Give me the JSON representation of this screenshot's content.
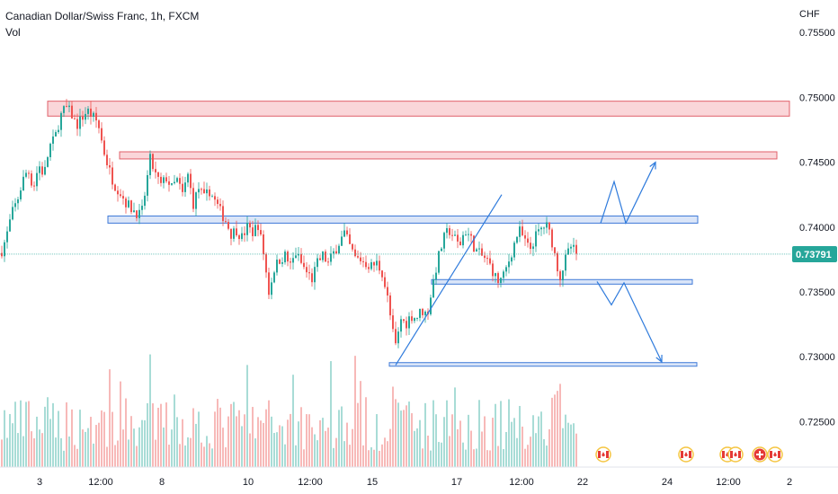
{
  "header": {
    "title": "Canadian Dollar/Swiss Franc, 1h, FXCM",
    "volume_label": "Vol",
    "currency": "CHF"
  },
  "colors": {
    "up": "#26a69a",
    "down": "#ef5350",
    "vol_up": "#a8dcd6",
    "vol_down": "#f7b9b8",
    "resistance_fill": "#f8c8cc",
    "resistance_stroke": "#e0606a",
    "support_fill": "#cddcf6",
    "support_stroke": "#3f7ad8",
    "arrow": "#2f7bdc",
    "price_line": "#26a69a",
    "event_flag": "#e53935",
    "event_ring": "#f5c542"
  },
  "chart_data": {
    "type": "candlestick",
    "title": "Canadian Dollar/Swiss Franc, 1h, FXCM",
    "ylabel": "CHF",
    "ylim": [
      0.7215,
      0.7575
    ],
    "y_ticks": [
      "0.75500",
      "0.75000",
      "0.74500",
      "0.74000",
      "0.73500",
      "0.73000",
      "0.72500"
    ],
    "x_ticks": [
      "3",
      "12:00",
      "8",
      "10",
      "12:00",
      "15",
      "17",
      "12:00",
      "22",
      "24",
      "12:00",
      "2"
    ],
    "last_price": "0.73791",
    "price_path": [
      {
        "t": 0,
        "v": 0.738
      },
      {
        "t": 6,
        "v": 0.7392
      },
      {
        "t": 12,
        "v": 0.741
      },
      {
        "t": 18,
        "v": 0.742
      },
      {
        "t": 24,
        "v": 0.7435
      },
      {
        "t": 30,
        "v": 0.7445
      },
      {
        "t": 36,
        "v": 0.743
      },
      {
        "t": 42,
        "v": 0.7448
      },
      {
        "t": 48,
        "v": 0.744
      },
      {
        "t": 54,
        "v": 0.7462
      },
      {
        "t": 60,
        "v": 0.7468
      },
      {
        "t": 66,
        "v": 0.7485
      },
      {
        "t": 72,
        "v": 0.7492
      },
      {
        "t": 78,
        "v": 0.7488
      },
      {
        "t": 84,
        "v": 0.7478
      },
      {
        "t": 90,
        "v": 0.7484
      },
      {
        "t": 96,
        "v": 0.749
      },
      {
        "t": 102,
        "v": 0.7485
      },
      {
        "t": 108,
        "v": 0.748
      },
      {
        "t": 114,
        "v": 0.746
      },
      {
        "t": 120,
        "v": 0.7445
      },
      {
        "t": 126,
        "v": 0.7433
      },
      {
        "t": 132,
        "v": 0.7428
      },
      {
        "t": 138,
        "v": 0.742
      },
      {
        "t": 144,
        "v": 0.7415
      },
      {
        "t": 150,
        "v": 0.7412
      },
      {
        "t": 156,
        "v": 0.7408
      },
      {
        "t": 160,
        "v": 0.7425
      },
      {
        "t": 166,
        "v": 0.7452
      },
      {
        "t": 172,
        "v": 0.744
      },
      {
        "t": 178,
        "v": 0.7432
      },
      {
        "t": 184,
        "v": 0.7438
      },
      {
        "t": 190,
        "v": 0.743
      },
      {
        "t": 196,
        "v": 0.7436
      },
      {
        "t": 202,
        "v": 0.7425
      },
      {
        "t": 208,
        "v": 0.744
      },
      {
        "t": 214,
        "v": 0.7418
      },
      {
        "t": 220,
        "v": 0.743
      },
      {
        "t": 226,
        "v": 0.7422
      },
      {
        "t": 232,
        "v": 0.7428
      },
      {
        "t": 238,
        "v": 0.742
      },
      {
        "t": 244,
        "v": 0.7412
      },
      {
        "t": 250,
        "v": 0.7405
      },
      {
        "t": 256,
        "v": 0.7395
      },
      {
        "t": 262,
        "v": 0.7398
      },
      {
        "t": 268,
        "v": 0.7392
      },
      {
        "t": 274,
        "v": 0.74
      },
      {
        "t": 280,
        "v": 0.7396
      },
      {
        "t": 286,
        "v": 0.7402
      },
      {
        "t": 292,
        "v": 0.738
      },
      {
        "t": 298,
        "v": 0.735
      },
      {
        "t": 304,
        "v": 0.7368
      },
      {
        "t": 310,
        "v": 0.7375
      },
      {
        "t": 316,
        "v": 0.7378
      },
      {
        "t": 322,
        "v": 0.737
      },
      {
        "t": 328,
        "v": 0.738
      },
      {
        "t": 334,
        "v": 0.7372
      },
      {
        "t": 340,
        "v": 0.7365
      },
      {
        "t": 346,
        "v": 0.736
      },
      {
        "t": 352,
        "v": 0.7372
      },
      {
        "t": 358,
        "v": 0.7378
      },
      {
        "t": 364,
        "v": 0.7372
      },
      {
        "t": 370,
        "v": 0.738
      },
      {
        "t": 376,
        "v": 0.7388
      },
      {
        "t": 382,
        "v": 0.7395
      },
      {
        "t": 388,
        "v": 0.7385
      },
      {
        "t": 394,
        "v": 0.7376
      },
      {
        "t": 400,
        "v": 0.7375
      },
      {
        "t": 406,
        "v": 0.7372
      },
      {
        "t": 412,
        "v": 0.737
      },
      {
        "t": 418,
        "v": 0.7372
      },
      {
        "t": 424,
        "v": 0.7365
      },
      {
        "t": 430,
        "v": 0.7345
      },
      {
        "t": 436,
        "v": 0.7318
      },
      {
        "t": 440,
        "v": 0.7305
      },
      {
        "t": 444,
        "v": 0.733
      },
      {
        "t": 450,
        "v": 0.7325
      },
      {
        "t": 456,
        "v": 0.7332
      },
      {
        "t": 462,
        "v": 0.733
      },
      {
        "t": 468,
        "v": 0.7336
      },
      {
        "t": 474,
        "v": 0.7332
      },
      {
        "t": 480,
        "v": 0.7355
      },
      {
        "t": 486,
        "v": 0.7375
      },
      {
        "t": 492,
        "v": 0.739
      },
      {
        "t": 498,
        "v": 0.7398
      },
      {
        "t": 504,
        "v": 0.7392
      },
      {
        "t": 510,
        "v": 0.7385
      },
      {
        "t": 516,
        "v": 0.7398
      },
      {
        "t": 522,
        "v": 0.7392
      },
      {
        "t": 528,
        "v": 0.7382
      },
      {
        "t": 534,
        "v": 0.7378
      },
      {
        "t": 540,
        "v": 0.7375
      },
      {
        "t": 546,
        "v": 0.7368
      },
      {
        "t": 552,
        "v": 0.7358
      },
      {
        "t": 558,
        "v": 0.736
      },
      {
        "t": 564,
        "v": 0.7372
      },
      {
        "t": 570,
        "v": 0.7385
      },
      {
        "t": 576,
        "v": 0.7398
      },
      {
        "t": 582,
        "v": 0.739
      },
      {
        "t": 588,
        "v": 0.7382
      },
      {
        "t": 594,
        "v": 0.7392
      },
      {
        "t": 600,
        "v": 0.7398
      },
      {
        "t": 606,
        "v": 0.7402
      },
      {
        "t": 612,
        "v": 0.7392
      },
      {
        "t": 618,
        "v": 0.7372
      },
      {
        "t": 622,
        "v": 0.7362
      },
      {
        "t": 628,
        "v": 0.7375
      },
      {
        "t": 634,
        "v": 0.7385
      },
      {
        "t": 640,
        "v": 0.73791
      }
    ],
    "zones": [
      {
        "kind": "resistance",
        "t1": 53,
        "t2": 878,
        "top": 0.7497,
        "bottom": 0.74855
      },
      {
        "kind": "resistance",
        "t1": 133,
        "t2": 864,
        "top": 0.7458,
        "bottom": 0.74525
      },
      {
        "kind": "support",
        "t1": 120,
        "t2": 776,
        "top": 0.74085,
        "bottom": 0.7403
      },
      {
        "kind": "support",
        "t1": 480,
        "t2": 770,
        "top": 0.73595,
        "bottom": 0.7356
      },
      {
        "kind": "support",
        "t1": 433,
        "t2": 775,
        "top": 0.72955,
        "bottom": 0.7293
      }
    ],
    "trendline": {
      "t1": 440,
      "v1": 0.72935,
      "t2": 558,
      "v2": 0.7425
    },
    "projections": [
      {
        "name": "bullish",
        "points": [
          {
            "t": 668,
            "v": 0.7403
          },
          {
            "t": 683,
            "v": 0.7435
          },
          {
            "t": 696,
            "v": 0.7403
          },
          {
            "t": 729,
            "v": 0.745
          }
        ]
      },
      {
        "name": "bearish",
        "points": [
          {
            "t": 664,
            "v": 0.7358
          },
          {
            "t": 680,
            "v": 0.734
          },
          {
            "t": 694,
            "v": 0.7357
          },
          {
            "t": 736,
            "v": 0.7296
          }
        ]
      }
    ],
    "events": [
      {
        "t": 671,
        "kind": "ca"
      },
      {
        "t": 763,
        "kind": "ca"
      },
      {
        "t": 809,
        "kind": "ca"
      },
      {
        "t": 818,
        "kind": "ca"
      },
      {
        "t": 845,
        "kind": "ch"
      },
      {
        "t": 862,
        "kind": "ca"
      }
    ]
  }
}
